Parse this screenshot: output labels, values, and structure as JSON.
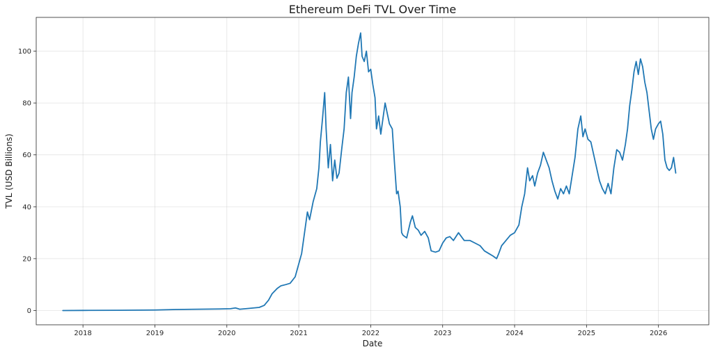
{
  "chart_data": {
    "type": "line",
    "title": "Ethereum DeFi TVL Over Time",
    "xlabel": "Date",
    "ylabel": "TVL (USD Billions)",
    "grid": true,
    "xlim": [
      2017.35,
      2026.7
    ],
    "ylim": [
      -5.5,
      113
    ],
    "x_ticks": [
      {
        "value": 2018,
        "label": "2018"
      },
      {
        "value": 2019,
        "label": "2019"
      },
      {
        "value": 2020,
        "label": "2020"
      },
      {
        "value": 2021,
        "label": "2021"
      },
      {
        "value": 2022,
        "label": "2022"
      },
      {
        "value": 2023,
        "label": "2023"
      },
      {
        "value": 2024,
        "label": "2024"
      },
      {
        "value": 2025,
        "label": "2025"
      },
      {
        "value": 2026,
        "label": "2026"
      }
    ],
    "y_ticks": [
      {
        "value": 0,
        "label": "0"
      },
      {
        "value": 20,
        "label": "20"
      },
      {
        "value": 40,
        "label": "40"
      },
      {
        "value": 60,
        "label": "60"
      },
      {
        "value": 80,
        "label": "80"
      },
      {
        "value": 100,
        "label": "100"
      }
    ],
    "series": [
      {
        "name": "TVL",
        "color": "#1f77b4",
        "points": [
          [
            2017.72,
            0.0
          ],
          [
            2018.0,
            0.05
          ],
          [
            2018.5,
            0.1
          ],
          [
            2019.0,
            0.2
          ],
          [
            2019.3,
            0.4
          ],
          [
            2019.6,
            0.5
          ],
          [
            2019.9,
            0.6
          ],
          [
            2020.05,
            0.7
          ],
          [
            2020.12,
            1.0
          ],
          [
            2020.18,
            0.5
          ],
          [
            2020.3,
            0.8
          ],
          [
            2020.45,
            1.2
          ],
          [
            2020.52,
            2.0
          ],
          [
            2020.58,
            4.0
          ],
          [
            2020.63,
            6.5
          ],
          [
            2020.7,
            8.5
          ],
          [
            2020.75,
            9.5
          ],
          [
            2020.82,
            10.0
          ],
          [
            2020.88,
            10.5
          ],
          [
            2020.95,
            13.0
          ],
          [
            2021.0,
            18.0
          ],
          [
            2021.04,
            22.0
          ],
          [
            2021.08,
            30.0
          ],
          [
            2021.12,
            38.0
          ],
          [
            2021.15,
            35.0
          ],
          [
            2021.2,
            42.0
          ],
          [
            2021.25,
            47.0
          ],
          [
            2021.28,
            55.0
          ],
          [
            2021.3,
            65.0
          ],
          [
            2021.33,
            74.0
          ],
          [
            2021.36,
            84.0
          ],
          [
            2021.38,
            70.0
          ],
          [
            2021.41,
            55.0
          ],
          [
            2021.44,
            64.0
          ],
          [
            2021.47,
            50.0
          ],
          [
            2021.5,
            58.0
          ],
          [
            2021.53,
            51.0
          ],
          [
            2021.56,
            53.0
          ],
          [
            2021.6,
            63.0
          ],
          [
            2021.63,
            70.0
          ],
          [
            2021.66,
            84.0
          ],
          [
            2021.69,
            90.0
          ],
          [
            2021.72,
            74.0
          ],
          [
            2021.74,
            84.0
          ],
          [
            2021.77,
            90.0
          ],
          [
            2021.8,
            98.0
          ],
          [
            2021.83,
            103.0
          ],
          [
            2021.86,
            107.0
          ],
          [
            2021.88,
            98.0
          ],
          [
            2021.91,
            96.0
          ],
          [
            2021.94,
            100.0
          ],
          [
            2021.97,
            92.0
          ],
          [
            2022.0,
            93.0
          ],
          [
            2022.03,
            87.0
          ],
          [
            2022.06,
            82.0
          ],
          [
            2022.08,
            70.0
          ],
          [
            2022.11,
            75.0
          ],
          [
            2022.14,
            68.0
          ],
          [
            2022.17,
            74.0
          ],
          [
            2022.2,
            80.0
          ],
          [
            2022.23,
            76.0
          ],
          [
            2022.26,
            72.0
          ],
          [
            2022.3,
            70.0
          ],
          [
            2022.33,
            57.0
          ],
          [
            2022.36,
            45.0
          ],
          [
            2022.38,
            46.0
          ],
          [
            2022.41,
            40.0
          ],
          [
            2022.43,
            30.0
          ],
          [
            2022.45,
            29.0
          ],
          [
            2022.5,
            28.0
          ],
          [
            2022.55,
            34.0
          ],
          [
            2022.58,
            36.5
          ],
          [
            2022.62,
            32.0
          ],
          [
            2022.66,
            31.0
          ],
          [
            2022.7,
            29.0
          ],
          [
            2022.75,
            30.5
          ],
          [
            2022.8,
            28.0
          ],
          [
            2022.84,
            23.0
          ],
          [
            2022.9,
            22.5
          ],
          [
            2022.95,
            23.0
          ],
          [
            2023.0,
            26.0
          ],
          [
            2023.05,
            28.0
          ],
          [
            2023.1,
            28.5
          ],
          [
            2023.15,
            27.0
          ],
          [
            2023.22,
            30.0
          ],
          [
            2023.3,
            27.0
          ],
          [
            2023.38,
            27.0
          ],
          [
            2023.45,
            26.0
          ],
          [
            2023.52,
            25.0
          ],
          [
            2023.58,
            23.0
          ],
          [
            2023.64,
            22.0
          ],
          [
            2023.7,
            21.0
          ],
          [
            2023.75,
            20.0
          ],
          [
            2023.78,
            22.0
          ],
          [
            2023.82,
            25.0
          ],
          [
            2023.88,
            27.0
          ],
          [
            2023.94,
            29.0
          ],
          [
            2024.0,
            30.0
          ],
          [
            2024.06,
            33.0
          ],
          [
            2024.1,
            40.0
          ],
          [
            2024.14,
            45.0
          ],
          [
            2024.18,
            55.0
          ],
          [
            2024.21,
            50.0
          ],
          [
            2024.25,
            52.0
          ],
          [
            2024.28,
            48.0
          ],
          [
            2024.32,
            53.0
          ],
          [
            2024.36,
            56.0
          ],
          [
            2024.4,
            61.0
          ],
          [
            2024.44,
            58.0
          ],
          [
            2024.48,
            55.0
          ],
          [
            2024.52,
            50.0
          ],
          [
            2024.56,
            46.0
          ],
          [
            2024.6,
            43.0
          ],
          [
            2024.64,
            47.0
          ],
          [
            2024.68,
            45.0
          ],
          [
            2024.72,
            48.0
          ],
          [
            2024.76,
            45.0
          ],
          [
            2024.8,
            52.0
          ],
          [
            2024.84,
            59.0
          ],
          [
            2024.88,
            70.0
          ],
          [
            2024.92,
            75.0
          ],
          [
            2024.95,
            67.0
          ],
          [
            2024.98,
            70.0
          ],
          [
            2025.02,
            66.0
          ],
          [
            2025.06,
            65.0
          ],
          [
            2025.1,
            60.0
          ],
          [
            2025.14,
            55.0
          ],
          [
            2025.18,
            50.0
          ],
          [
            2025.22,
            47.0
          ],
          [
            2025.26,
            45.0
          ],
          [
            2025.3,
            49.0
          ],
          [
            2025.34,
            45.0
          ],
          [
            2025.38,
            55.0
          ],
          [
            2025.42,
            62.0
          ],
          [
            2025.46,
            61.0
          ],
          [
            2025.5,
            58.0
          ],
          [
            2025.54,
            64.0
          ],
          [
            2025.57,
            70.0
          ],
          [
            2025.6,
            79.0
          ],
          [
            2025.63,
            85.0
          ],
          [
            2025.66,
            92.0
          ],
          [
            2025.69,
            96.0
          ],
          [
            2025.72,
            91.0
          ],
          [
            2025.75,
            97.0
          ],
          [
            2025.78,
            94.0
          ],
          [
            2025.81,
            88.0
          ],
          [
            2025.84,
            84.0
          ],
          [
            2025.87,
            77.0
          ],
          [
            2025.9,
            70.0
          ],
          [
            2025.93,
            66.0
          ],
          [
            2025.96,
            70.0
          ],
          [
            2026.0,
            72.0
          ],
          [
            2026.03,
            73.0
          ],
          [
            2026.06,
            68.0
          ],
          [
            2026.09,
            58.0
          ],
          [
            2026.12,
            55.0
          ],
          [
            2026.15,
            54.0
          ],
          [
            2026.18,
            55.0
          ],
          [
            2026.21,
            59.0
          ],
          [
            2026.24,
            53.0
          ]
        ]
      }
    ]
  }
}
